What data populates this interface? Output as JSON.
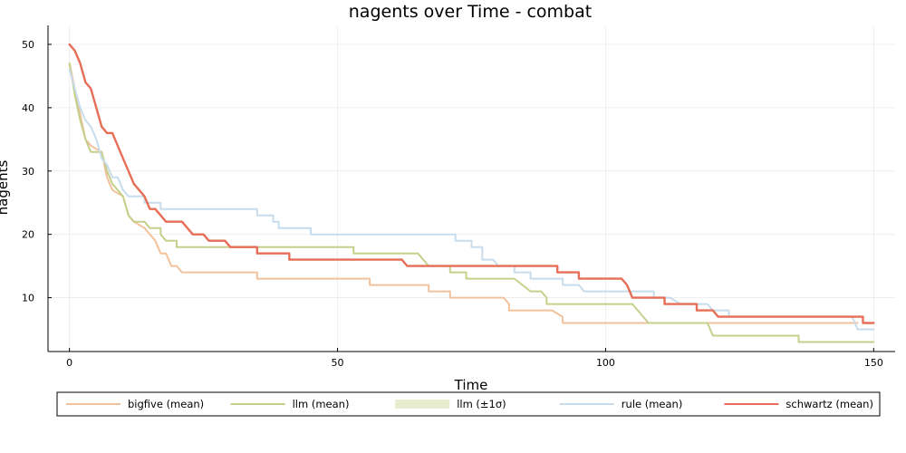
{
  "chart_data": {
    "type": "line",
    "title": "nagents over Time - combat",
    "xlabel": "Time",
    "ylabel": "nagents",
    "xlim": [
      -4,
      154
    ],
    "ylim": [
      1.5,
      53
    ],
    "xticks": [
      0,
      50,
      100,
      150
    ],
    "yticks": [
      10,
      20,
      30,
      40,
      50
    ],
    "grid": true,
    "legend_position": "bottom",
    "band": {
      "name": "llm (±1σ)",
      "color": "#dde4b8"
    },
    "series": [
      {
        "name": "bigfive (mean)",
        "color": "#f2c29c",
        "points": [
          [
            0,
            47
          ],
          [
            1,
            43
          ],
          [
            2,
            39
          ],
          [
            3,
            35
          ],
          [
            4,
            34
          ],
          [
            6,
            33
          ],
          [
            7,
            29
          ],
          [
            8,
            27
          ],
          [
            10,
            26
          ],
          [
            11,
            23
          ],
          [
            12,
            22
          ],
          [
            14,
            21
          ],
          [
            16,
            19
          ],
          [
            17,
            17
          ],
          [
            18,
            17
          ],
          [
            19,
            15
          ],
          [
            20,
            15
          ],
          [
            21,
            14
          ],
          [
            35,
            14
          ],
          [
            35,
            13
          ],
          [
            56,
            13
          ],
          [
            56,
            12
          ],
          [
            67,
            12
          ],
          [
            67,
            11
          ],
          [
            69,
            11
          ],
          [
            71,
            11
          ],
          [
            71,
            10
          ],
          [
            81,
            10
          ],
          [
            82,
            9
          ],
          [
            82,
            8
          ],
          [
            90,
            8
          ],
          [
            92,
            7
          ],
          [
            92,
            6
          ],
          [
            147,
            6
          ]
        ]
      },
      {
        "name": "llm (mean)",
        "color": "#c6d08a",
        "points": [
          [
            0,
            47
          ],
          [
            1,
            42
          ],
          [
            2,
            38
          ],
          [
            3,
            35
          ],
          [
            4,
            33
          ],
          [
            6,
            33
          ],
          [
            7,
            30
          ],
          [
            8,
            28
          ],
          [
            10,
            26
          ],
          [
            11,
            23
          ],
          [
            12,
            22
          ],
          [
            14,
            22
          ],
          [
            15,
            21
          ],
          [
            17,
            21
          ],
          [
            17,
            20
          ],
          [
            18,
            19
          ],
          [
            20,
            19
          ],
          [
            20,
            18
          ],
          [
            53,
            18
          ],
          [
            53,
            17
          ],
          [
            65,
            17
          ],
          [
            67,
            15
          ],
          [
            71,
            15
          ],
          [
            71,
            14
          ],
          [
            74,
            14
          ],
          [
            74,
            13
          ],
          [
            83,
            13
          ],
          [
            86,
            11
          ],
          [
            88,
            11
          ],
          [
            89,
            10
          ],
          [
            89,
            9
          ],
          [
            105,
            9
          ],
          [
            108,
            6
          ],
          [
            119,
            6
          ],
          [
            120,
            4
          ],
          [
            136,
            4
          ],
          [
            136,
            3
          ],
          [
            150,
            3
          ]
        ]
      },
      {
        "name": "rule (mean)",
        "color": "#c7dced",
        "points": [
          [
            0,
            46
          ],
          [
            1,
            43
          ],
          [
            2,
            40
          ],
          [
            3,
            38
          ],
          [
            4,
            37
          ],
          [
            5,
            35
          ],
          [
            6,
            32
          ],
          [
            7,
            31
          ],
          [
            8,
            29
          ],
          [
            9,
            29
          ],
          [
            10,
            27
          ],
          [
            11,
            26
          ],
          [
            14,
            26
          ],
          [
            14,
            25
          ],
          [
            17,
            25
          ],
          [
            17,
            24
          ],
          [
            35,
            24
          ],
          [
            35,
            23
          ],
          [
            38,
            23
          ],
          [
            38,
            22
          ],
          [
            39,
            22
          ],
          [
            39,
            21
          ],
          [
            45,
            21
          ],
          [
            45,
            20
          ],
          [
            72,
            20
          ],
          [
            72,
            19
          ],
          [
            75,
            19
          ],
          [
            75,
            18
          ],
          [
            77,
            18
          ],
          [
            77,
            16
          ],
          [
            79,
            16
          ],
          [
            80,
            15
          ],
          [
            83,
            15
          ],
          [
            83,
            14
          ],
          [
            86,
            14
          ],
          [
            86,
            13
          ],
          [
            92,
            13
          ],
          [
            92,
            12
          ],
          [
            95,
            12
          ],
          [
            96,
            11
          ],
          [
            109,
            11
          ],
          [
            109,
            10
          ],
          [
            112,
            10
          ],
          [
            114,
            9
          ],
          [
            119,
            9
          ],
          [
            120,
            8
          ],
          [
            123,
            8
          ],
          [
            123,
            7
          ],
          [
            146,
            7
          ],
          [
            147,
            5
          ],
          [
            150,
            5
          ]
        ]
      },
      {
        "name": "schwartz (mean)",
        "color": "#e66e57",
        "points": [
          [
            0,
            50
          ],
          [
            1,
            49
          ],
          [
            2,
            47
          ],
          [
            3,
            44
          ],
          [
            4,
            43
          ],
          [
            5,
            40
          ],
          [
            6,
            37
          ],
          [
            7,
            36
          ],
          [
            8,
            36
          ],
          [
            9,
            34
          ],
          [
            10,
            32
          ],
          [
            11,
            30
          ],
          [
            12,
            28
          ],
          [
            14,
            26
          ],
          [
            15,
            24
          ],
          [
            16,
            24
          ],
          [
            17,
            23
          ],
          [
            18,
            22
          ],
          [
            21,
            22
          ],
          [
            23,
            20
          ],
          [
            25,
            20
          ],
          [
            26,
            19
          ],
          [
            29,
            19
          ],
          [
            30,
            18
          ],
          [
            35,
            18
          ],
          [
            35,
            17
          ],
          [
            41,
            17
          ],
          [
            41,
            16
          ],
          [
            62,
            16
          ],
          [
            63,
            15
          ],
          [
            91,
            15
          ],
          [
            91,
            14
          ],
          [
            95,
            14
          ],
          [
            95,
            13
          ],
          [
            103,
            13
          ],
          [
            104,
            12
          ],
          [
            105,
            10
          ],
          [
            111,
            10
          ],
          [
            111,
            9
          ],
          [
            117,
            9
          ],
          [
            117,
            8
          ],
          [
            120,
            8
          ],
          [
            121,
            7
          ],
          [
            148,
            7
          ],
          [
            148,
            6
          ],
          [
            150,
            6
          ]
        ]
      }
    ],
    "legend": [
      {
        "label": "bigfive (mean)",
        "color": "#f2c29c",
        "kind": "line"
      },
      {
        "label": "llm (mean)",
        "color": "#c6d08a",
        "kind": "line"
      },
      {
        "label": "llm (±1σ)",
        "color": "#e8edcf",
        "kind": "band"
      },
      {
        "label": "rule (mean)",
        "color": "#c7dced",
        "kind": "line"
      },
      {
        "label": "schwartz (mean)",
        "color": "#e66e57",
        "kind": "line"
      }
    ]
  }
}
